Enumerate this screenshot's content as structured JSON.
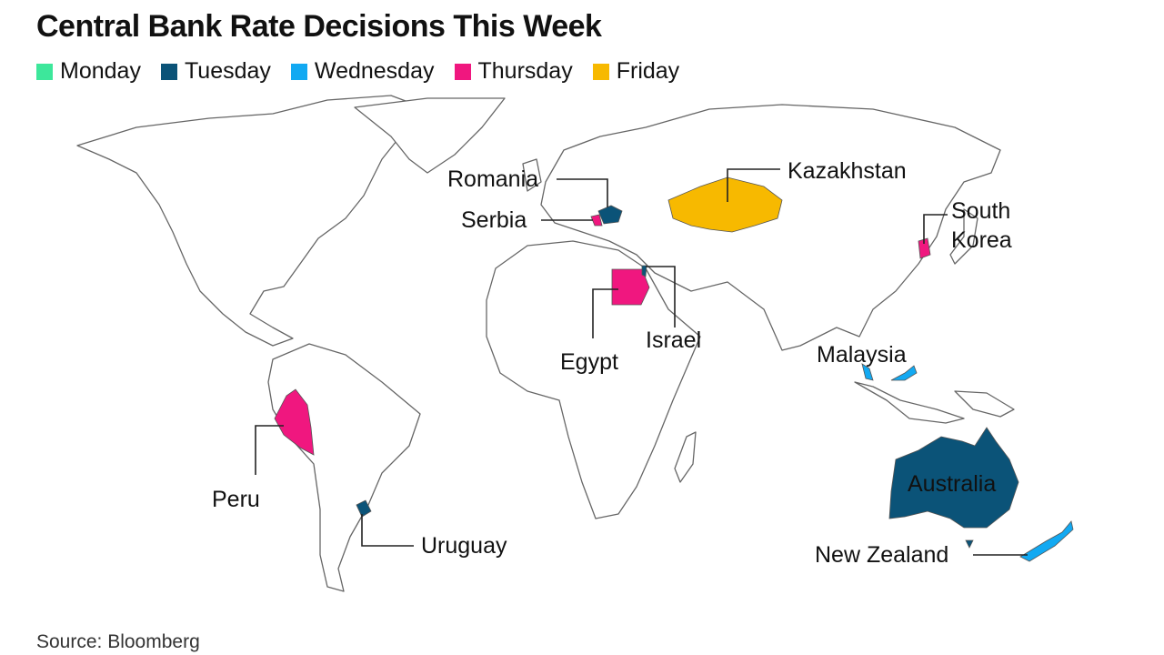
{
  "title": "Central Bank Rate Decisions This Week",
  "legend": [
    {
      "label": "Monday",
      "color": "#3de79b"
    },
    {
      "label": "Tuesday",
      "color": "#0b5378"
    },
    {
      "label": "Wednesday",
      "color": "#12a9f2"
    },
    {
      "label": "Thursday",
      "color": "#f0177f"
    },
    {
      "label": "Friday",
      "color": "#f7b900"
    }
  ],
  "countries": [
    {
      "name": "Romania",
      "day": "Tuesday"
    },
    {
      "name": "Serbia",
      "day": "Thursday"
    },
    {
      "name": "Kazakhstan",
      "day": "Friday"
    },
    {
      "name": "South Korea",
      "day": "Thursday"
    },
    {
      "name": "Egypt",
      "day": "Thursday"
    },
    {
      "name": "Israel",
      "day": "Tuesday"
    },
    {
      "name": "Malaysia",
      "day": "Wednesday"
    },
    {
      "name": "Australia",
      "day": "Tuesday"
    },
    {
      "name": "New Zealand",
      "day": "Wednesday"
    },
    {
      "name": "Peru",
      "day": "Thursday"
    },
    {
      "name": "Uruguay",
      "day": "Tuesday"
    }
  ],
  "labels": {
    "romania": "Romania",
    "serbia": "Serbia",
    "kazakhstan": "Kazakhstan",
    "south_korea_1": "South",
    "south_korea_2": "Korea",
    "egypt": "Egypt",
    "israel": "Israel",
    "malaysia": "Malaysia",
    "australia": "Australia",
    "new_zealand": "New Zealand",
    "peru": "Peru",
    "uruguay": "Uruguay"
  },
  "source": "Source: Bloomberg"
}
